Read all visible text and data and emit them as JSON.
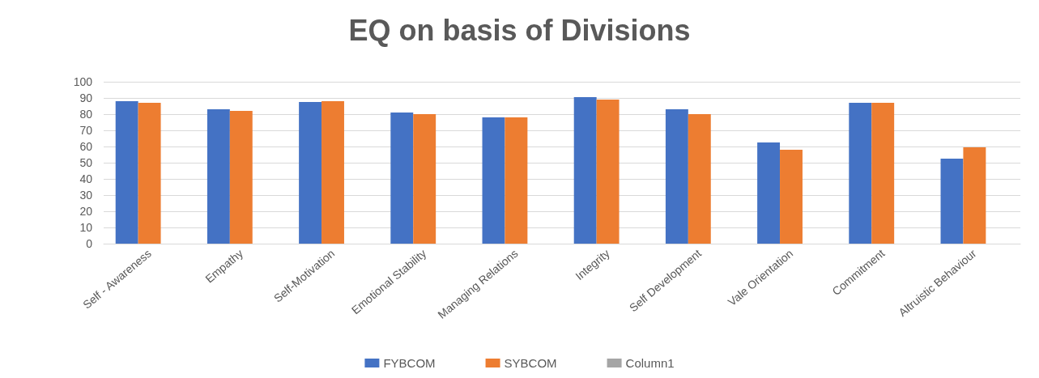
{
  "chart_data": {
    "type": "bar",
    "title": "EQ on basis of Divisions",
    "categories": [
      "Self - Awareness",
      "Empathy",
      "Self-Motivation",
      "Emotional Stability",
      "Managing Relations",
      "Integrity",
      "Self Development",
      "Vale Orientation",
      "Commitment",
      "Altruistic Behaviour"
    ],
    "series": [
      {
        "name": "FYBCOM",
        "color": "#4472c4",
        "values": [
          88,
          83,
          87.5,
          81,
          78,
          90.5,
          83,
          62.5,
          87,
          52.5
        ]
      },
      {
        "name": "SYBCOM",
        "color": "#ed7d31",
        "values": [
          87,
          82,
          88,
          80,
          78,
          89,
          80,
          58,
          87,
          59.5
        ]
      },
      {
        "name": "Column1",
        "color": "#a5a5a5",
        "values": [
          null,
          null,
          null,
          null,
          null,
          null,
          null,
          null,
          null,
          null
        ]
      }
    ],
    "ylim": [
      0,
      100
    ],
    "yticks": [
      0,
      10,
      20,
      30,
      40,
      50,
      60,
      70,
      80,
      90,
      100
    ],
    "grid": "y",
    "legend": "bottom"
  }
}
